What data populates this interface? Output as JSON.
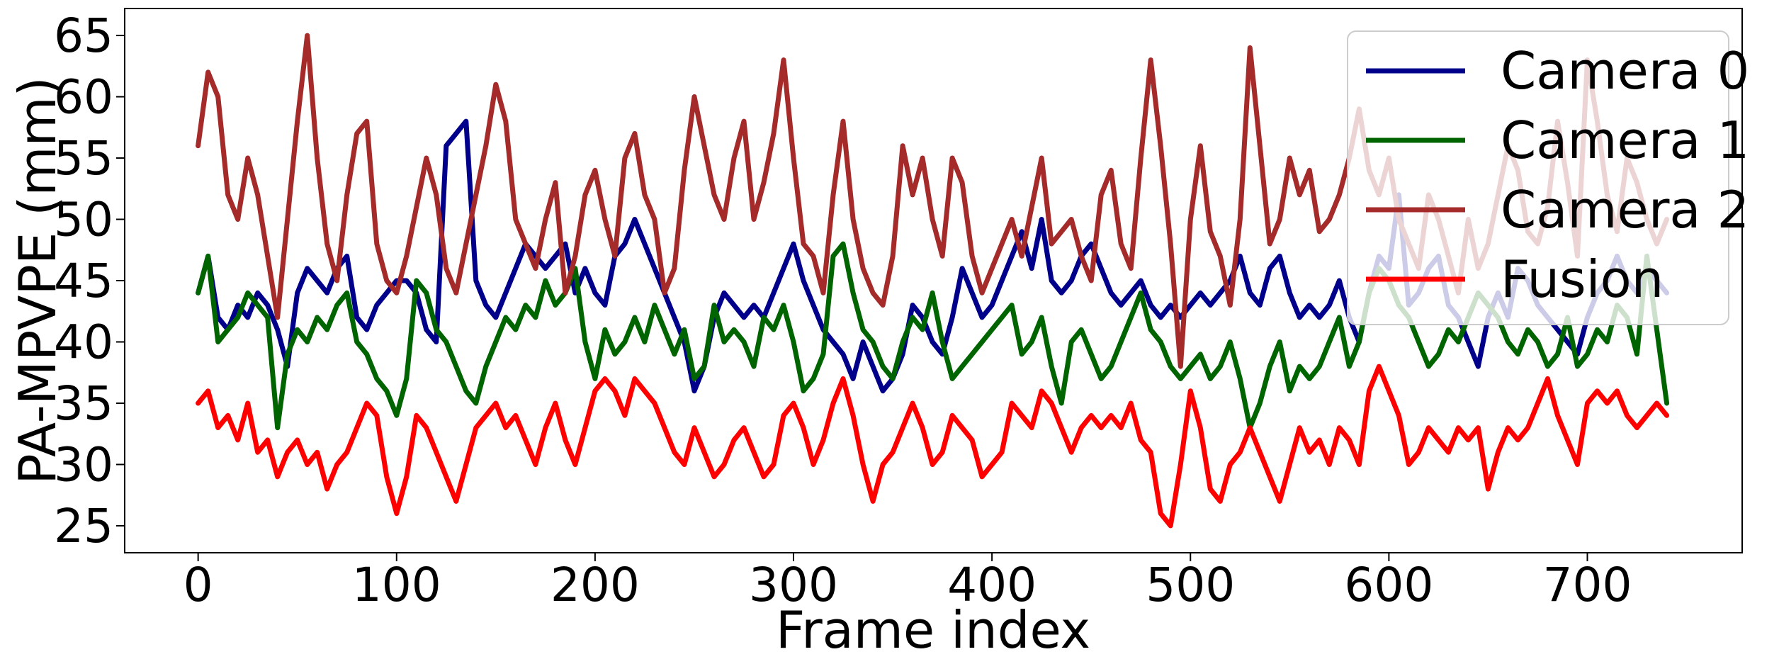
{
  "chart_data": {
    "type": "line",
    "title": "",
    "xlabel": "Frame index",
    "ylabel": "PA-MPVPE (mm)",
    "xlim": [
      -37,
      778
    ],
    "ylim": [
      22.8,
      67.2
    ],
    "xticks": [
      0,
      100,
      200,
      300,
      400,
      500,
      600,
      700
    ],
    "yticks": [
      25,
      30,
      35,
      40,
      45,
      50,
      55,
      60,
      65
    ],
    "grid": false,
    "legend_position": "top-right",
    "series": [
      {
        "name": "Camera 0",
        "color": "#00008b",
        "x": [
          0,
          5,
          10,
          15,
          20,
          25,
          30,
          35,
          40,
          45,
          50,
          55,
          60,
          65,
          70,
          75,
          80,
          85,
          90,
          95,
          100,
          105,
          110,
          115,
          120,
          125,
          130,
          135,
          140,
          145,
          150,
          155,
          160,
          165,
          170,
          175,
          180,
          185,
          190,
          195,
          200,
          205,
          210,
          215,
          220,
          225,
          230,
          235,
          240,
          245,
          250,
          255,
          260,
          265,
          270,
          275,
          280,
          285,
          290,
          295,
          300,
          305,
          310,
          315,
          320,
          325,
          330,
          335,
          340,
          345,
          350,
          355,
          360,
          365,
          370,
          375,
          380,
          385,
          390,
          395,
          400,
          405,
          410,
          415,
          420,
          425,
          430,
          435,
          440,
          445,
          450,
          455,
          460,
          465,
          470,
          475,
          480,
          485,
          490,
          495,
          500,
          505,
          510,
          515,
          520,
          525,
          530,
          535,
          540,
          545,
          550,
          555,
          560,
          565,
          570,
          575,
          580,
          585,
          590,
          595,
          600,
          605,
          610,
          615,
          620,
          625,
          630,
          635,
          640,
          645,
          650,
          655,
          660,
          665,
          670,
          675,
          680,
          685,
          690,
          695,
          700,
          705,
          710,
          715,
          720,
          725,
          730,
          735,
          740
        ],
        "values": [
          44,
          47,
          42,
          41,
          43,
          42,
          44,
          43,
          41,
          38,
          44,
          46,
          45,
          44,
          46,
          47,
          42,
          41,
          43,
          44,
          45,
          45,
          44,
          41,
          40,
          56,
          57,
          58,
          45,
          43,
          42,
          44,
          46,
          48,
          47,
          46,
          47,
          48,
          44,
          46,
          44,
          43,
          47,
          48,
          50,
          48,
          46,
          44,
          42,
          40,
          36,
          38,
          42,
          44,
          43,
          42,
          43,
          42,
          44,
          46,
          48,
          45,
          43,
          41,
          40,
          39,
          37,
          40,
          38,
          36,
          37,
          39,
          43,
          42,
          40,
          39,
          42,
          46,
          44,
          42,
          43,
          45,
          47,
          49,
          46,
          50,
          45,
          44,
          45,
          47,
          48,
          46,
          44,
          43,
          44,
          45,
          43,
          42,
          43,
          42,
          43,
          44,
          43,
          44,
          45,
          47,
          44,
          43,
          46,
          47,
          44,
          42,
          43,
          42,
          43,
          45,
          42,
          40,
          44,
          47,
          46,
          52,
          43,
          44,
          46,
          47,
          43,
          42,
          40,
          38,
          42,
          44,
          42,
          46,
          45,
          43,
          42,
          41,
          40,
          39,
          42,
          44,
          45,
          47,
          45,
          44,
          46,
          45,
          44
        ]
      },
      {
        "name": "Camera 1",
        "color": "#006400",
        "x": [
          0,
          5,
          10,
          15,
          20,
          25,
          30,
          35,
          40,
          45,
          50,
          55,
          60,
          65,
          70,
          75,
          80,
          85,
          90,
          95,
          100,
          105,
          110,
          115,
          120,
          125,
          130,
          135,
          140,
          145,
          150,
          155,
          160,
          165,
          170,
          175,
          180,
          185,
          190,
          195,
          200,
          205,
          210,
          215,
          220,
          225,
          230,
          235,
          240,
          245,
          250,
          255,
          260,
          265,
          270,
          275,
          280,
          285,
          290,
          295,
          300,
          305,
          310,
          315,
          320,
          325,
          330,
          335,
          340,
          345,
          350,
          355,
          360,
          365,
          370,
          375,
          380,
          385,
          390,
          395,
          400,
          405,
          410,
          415,
          420,
          425,
          430,
          435,
          440,
          445,
          450,
          455,
          460,
          465,
          470,
          475,
          480,
          485,
          490,
          495,
          500,
          505,
          510,
          515,
          520,
          525,
          530,
          535,
          540,
          545,
          550,
          555,
          560,
          565,
          570,
          575,
          580,
          585,
          590,
          595,
          600,
          605,
          610,
          615,
          620,
          625,
          630,
          635,
          640,
          645,
          650,
          655,
          660,
          665,
          670,
          675,
          680,
          685,
          690,
          695,
          700,
          705,
          710,
          715,
          720,
          725,
          730,
          735,
          740
        ],
        "values": [
          44,
          47,
          40,
          41,
          42,
          44,
          43,
          42,
          33,
          39,
          41,
          40,
          42,
          41,
          43,
          44,
          40,
          39,
          37,
          36,
          34,
          37,
          45,
          44,
          41,
          40,
          38,
          36,
          35,
          38,
          40,
          42,
          41,
          43,
          42,
          45,
          43,
          44,
          46,
          40,
          37,
          41,
          39,
          40,
          42,
          40,
          43,
          41,
          39,
          41,
          37,
          38,
          43,
          40,
          41,
          40,
          38,
          42,
          41,
          43,
          40,
          36,
          37,
          39,
          47,
          48,
          44,
          41,
          40,
          38,
          37,
          40,
          42,
          41,
          44,
          40,
          37,
          38,
          39,
          40,
          41,
          42,
          43,
          39,
          40,
          42,
          38,
          35,
          40,
          41,
          39,
          37,
          38,
          40,
          42,
          44,
          41,
          40,
          38,
          37,
          38,
          39,
          37,
          38,
          40,
          37,
          33,
          35,
          38,
          40,
          36,
          38,
          37,
          38,
          40,
          42,
          38,
          40,
          44,
          46,
          45,
          43,
          42,
          40,
          38,
          39,
          41,
          40,
          42,
          44,
          43,
          42,
          40,
          39,
          41,
          40,
          38,
          39,
          42,
          38,
          39,
          41,
          40,
          43,
          42,
          39,
          47,
          41,
          35
        ]
      },
      {
        "name": "Camera 2",
        "color": "#a52a2a",
        "x": [
          0,
          5,
          10,
          15,
          20,
          25,
          30,
          35,
          40,
          45,
          50,
          55,
          60,
          65,
          70,
          75,
          80,
          85,
          90,
          95,
          100,
          105,
          110,
          115,
          120,
          125,
          130,
          135,
          140,
          145,
          150,
          155,
          160,
          165,
          170,
          175,
          180,
          185,
          190,
          195,
          200,
          205,
          210,
          215,
          220,
          225,
          230,
          235,
          240,
          245,
          250,
          255,
          260,
          265,
          270,
          275,
          280,
          285,
          290,
          295,
          300,
          305,
          310,
          315,
          320,
          325,
          330,
          335,
          340,
          345,
          350,
          355,
          360,
          365,
          370,
          375,
          380,
          385,
          390,
          395,
          400,
          405,
          410,
          415,
          420,
          425,
          430,
          435,
          440,
          445,
          450,
          455,
          460,
          465,
          470,
          475,
          480,
          485,
          490,
          495,
          500,
          505,
          510,
          515,
          520,
          525,
          530,
          535,
          540,
          545,
          550,
          555,
          560,
          565,
          570,
          575,
          580,
          585,
          590,
          595,
          600,
          605,
          610,
          615,
          620,
          625,
          630,
          635,
          640,
          645,
          650,
          655,
          660,
          665,
          670,
          675,
          680,
          685,
          690,
          695,
          700,
          705,
          710,
          715,
          720,
          725,
          730,
          735,
          740
        ],
        "values": [
          56,
          62,
          60,
          52,
          50,
          55,
          52,
          47,
          42,
          50,
          58,
          65,
          55,
          48,
          45,
          52,
          57,
          58,
          48,
          45,
          44,
          47,
          51,
          55,
          52,
          46,
          44,
          48,
          52,
          56,
          61,
          58,
          50,
          48,
          46,
          50,
          53,
          44,
          47,
          52,
          54,
          50,
          47,
          55,
          57,
          52,
          50,
          44,
          46,
          54,
          60,
          56,
          52,
          50,
          55,
          58,
          50,
          53,
          57,
          63,
          55,
          48,
          47,
          44,
          52,
          58,
          50,
          46,
          44,
          43,
          47,
          56,
          52,
          55,
          50,
          47,
          55,
          53,
          47,
          44,
          46,
          48,
          50,
          47,
          51,
          55,
          48,
          49,
          50,
          47,
          45,
          52,
          54,
          48,
          46,
          55,
          63,
          56,
          48,
          38,
          50,
          56,
          49,
          47,
          43,
          50,
          64,
          56,
          48,
          50,
          55,
          52,
          54,
          49,
          50,
          52,
          55,
          59,
          54,
          52,
          55,
          50,
          48,
          46,
          52,
          50,
          47,
          44,
          50,
          46,
          48,
          52,
          56,
          54,
          49,
          48,
          51,
          58,
          53,
          47,
          63,
          58,
          52,
          49,
          55,
          53,
          50,
          48,
          50
        ]
      },
      {
        "name": "Fusion",
        "color": "#ff0000",
        "x": [
          0,
          5,
          10,
          15,
          20,
          25,
          30,
          35,
          40,
          45,
          50,
          55,
          60,
          65,
          70,
          75,
          80,
          85,
          90,
          95,
          100,
          105,
          110,
          115,
          120,
          125,
          130,
          135,
          140,
          145,
          150,
          155,
          160,
          165,
          170,
          175,
          180,
          185,
          190,
          195,
          200,
          205,
          210,
          215,
          220,
          225,
          230,
          235,
          240,
          245,
          250,
          255,
          260,
          265,
          270,
          275,
          280,
          285,
          290,
          295,
          300,
          305,
          310,
          315,
          320,
          325,
          330,
          335,
          340,
          345,
          350,
          355,
          360,
          365,
          370,
          375,
          380,
          385,
          390,
          395,
          400,
          405,
          410,
          415,
          420,
          425,
          430,
          435,
          440,
          445,
          450,
          455,
          460,
          465,
          470,
          475,
          480,
          485,
          490,
          495,
          500,
          505,
          510,
          515,
          520,
          525,
          530,
          535,
          540,
          545,
          550,
          555,
          560,
          565,
          570,
          575,
          580,
          585,
          590,
          595,
          600,
          605,
          610,
          615,
          620,
          625,
          630,
          635,
          640,
          645,
          650,
          655,
          660,
          665,
          670,
          675,
          680,
          685,
          690,
          695,
          700,
          705,
          710,
          715,
          720,
          725,
          730,
          735,
          740
        ],
        "values": [
          35,
          36,
          33,
          34,
          32,
          35,
          31,
          32,
          29,
          31,
          32,
          30,
          31,
          28,
          30,
          31,
          33,
          35,
          34,
          29,
          26,
          29,
          34,
          33,
          31,
          29,
          27,
          30,
          33,
          34,
          35,
          33,
          34,
          32,
          30,
          33,
          35,
          32,
          30,
          33,
          36,
          37,
          36,
          34,
          37,
          36,
          35,
          33,
          31,
          30,
          33,
          31,
          29,
          30,
          32,
          33,
          31,
          29,
          30,
          34,
          35,
          33,
          30,
          32,
          35,
          37,
          34,
          30,
          27,
          30,
          31,
          33,
          35,
          33,
          30,
          31,
          34,
          33,
          32,
          29,
          30,
          31,
          35,
          34,
          33,
          36,
          35,
          33,
          31,
          33,
          34,
          33,
          34,
          33,
          35,
          32,
          31,
          26,
          25,
          30,
          36,
          33,
          28,
          27,
          30,
          31,
          33,
          31,
          29,
          27,
          30,
          33,
          31,
          32,
          30,
          33,
          32,
          30,
          36,
          38,
          36,
          34,
          30,
          31,
          33,
          32,
          31,
          33,
          32,
          33,
          28,
          31,
          33,
          32,
          33,
          35,
          37,
          34,
          32,
          30,
          35,
          36,
          35,
          36,
          34,
          33,
          34,
          35,
          34
        ]
      }
    ]
  }
}
